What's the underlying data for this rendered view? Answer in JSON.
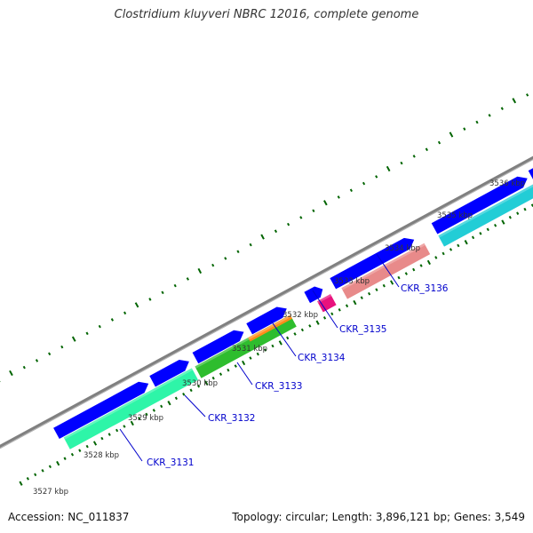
{
  "title": "Clostridium kluyveri NBRC 12016, complete genome",
  "footer": {
    "accession": "Accession: NC_011837",
    "topology": "Topology: circular; Length: 3,896,121 bp; Genes: 3,549"
  },
  "colors": {
    "backbone": "#808080",
    "forward_cds": "#0000ff",
    "tick": "#006400",
    "label": "#0000cc",
    "feature_1": "#2ef5a8",
    "feature_2": "#2ebd2e",
    "feature_3": "#ff8c1a",
    "feature_4": "#e8127d",
    "feature_5": "#e88a8a",
    "feature_6": "#22cdd6"
  },
  "scale_labels": [
    "3527 kbp",
    "3528 kbp",
    "3529 kbp",
    "3530 kbp",
    "3531 kbp",
    "3532 kbp",
    "3533 kbp",
    "3534 kbp",
    "3535 kbp",
    "3536 kbp"
  ],
  "gene_labels": [
    "CKR_3131",
    "CKR_3132",
    "CKR_3133",
    "CKR_3134",
    "CKR_3135",
    "CKR_3136"
  ]
}
